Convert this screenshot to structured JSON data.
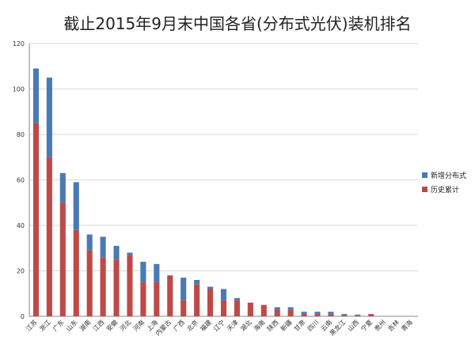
{
  "colors": {
    "increment": "#4a7ab5",
    "history": "#bd4a48",
    "grid": "#d9d9d9",
    "axis": "#8a8a8a"
  },
  "chart_data": {
    "type": "bar",
    "stacked": true,
    "title": "截止2015年9月末中国各省(分布式光伏)装机排名",
    "xlabel": "",
    "ylabel": "",
    "ylim": [
      0,
      120
    ],
    "yticks": [
      0,
      20,
      40,
      60,
      80,
      100,
      120
    ],
    "grid": true,
    "legend_position": "right",
    "categories": [
      "江苏",
      "浙江",
      "广东",
      "山东",
      "湖南",
      "江西",
      "安徽",
      "河北",
      "河南",
      "上海",
      "内蒙古",
      "广西",
      "北京",
      "福建",
      "辽宁",
      "天津",
      "湖北",
      "海南",
      "陕西",
      "新疆",
      "甘肃",
      "四川",
      "云南",
      "黑龙江",
      "山西",
      "宁夏",
      "贵州",
      "吉林",
      "青海"
    ],
    "series": [
      {
        "name": "历史累计",
        "values": [
          85,
          70,
          50,
          38,
          29,
          26,
          25,
          27,
          15,
          15,
          18,
          7,
          14,
          12,
          7,
          7,
          6,
          5,
          3,
          3,
          1,
          1,
          1,
          0.5,
          0.4,
          1,
          0,
          0,
          0
        ]
      },
      {
        "name": "新增分布式",
        "values": [
          24,
          35,
          13,
          21,
          7,
          9,
          6,
          1,
          9,
          8,
          0,
          10,
          2,
          1,
          5,
          1,
          0,
          0,
          1,
          1,
          1,
          1,
          1,
          0.5,
          0.4,
          0,
          0,
          0,
          0
        ]
      }
    ]
  }
}
